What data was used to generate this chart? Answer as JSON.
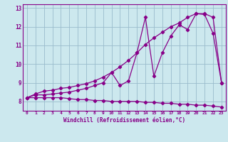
{
  "xlabel": "Windchill (Refroidissement éolien,°C)",
  "bg_color": "#cce8ee",
  "line_color": "#880088",
  "grid_color": "#99bbcc",
  "x": [
    0,
    1,
    2,
    3,
    4,
    5,
    6,
    7,
    8,
    9,
    10,
    11,
    12,
    13,
    14,
    15,
    16,
    17,
    18,
    19,
    20,
    21,
    22,
    23
  ],
  "y_flat": [
    8.2,
    8.2,
    8.2,
    8.2,
    8.2,
    8.15,
    8.1,
    8.1,
    8.05,
    8.05,
    8.0,
    8.0,
    8.0,
    8.0,
    7.95,
    7.95,
    7.9,
    7.9,
    7.85,
    7.85,
    7.8,
    7.8,
    7.75,
    7.7
  ],
  "y_linear": [
    8.2,
    8.4,
    8.55,
    8.6,
    8.7,
    8.75,
    8.85,
    8.95,
    9.1,
    9.3,
    9.55,
    9.85,
    10.2,
    10.6,
    11.05,
    11.4,
    11.7,
    12.0,
    12.2,
    12.5,
    12.7,
    12.7,
    12.5,
    9.0
  ],
  "y_jagged": [
    8.2,
    8.35,
    8.35,
    8.4,
    8.45,
    8.5,
    8.6,
    8.7,
    8.85,
    9.0,
    9.55,
    8.85,
    9.1,
    10.6,
    12.5,
    9.35,
    10.6,
    11.5,
    12.1,
    11.85,
    12.7,
    12.65,
    11.65,
    9.0
  ],
  "ylim": [
    7.5,
    13.2
  ],
  "yticks": [
    8,
    9,
    10,
    11,
    12,
    13
  ],
  "xlim": [
    -0.5,
    23.5
  ],
  "xticks": [
    0,
    1,
    2,
    3,
    4,
    5,
    6,
    7,
    8,
    9,
    10,
    11,
    12,
    13,
    14,
    15,
    16,
    17,
    18,
    19,
    20,
    21,
    22,
    23
  ]
}
